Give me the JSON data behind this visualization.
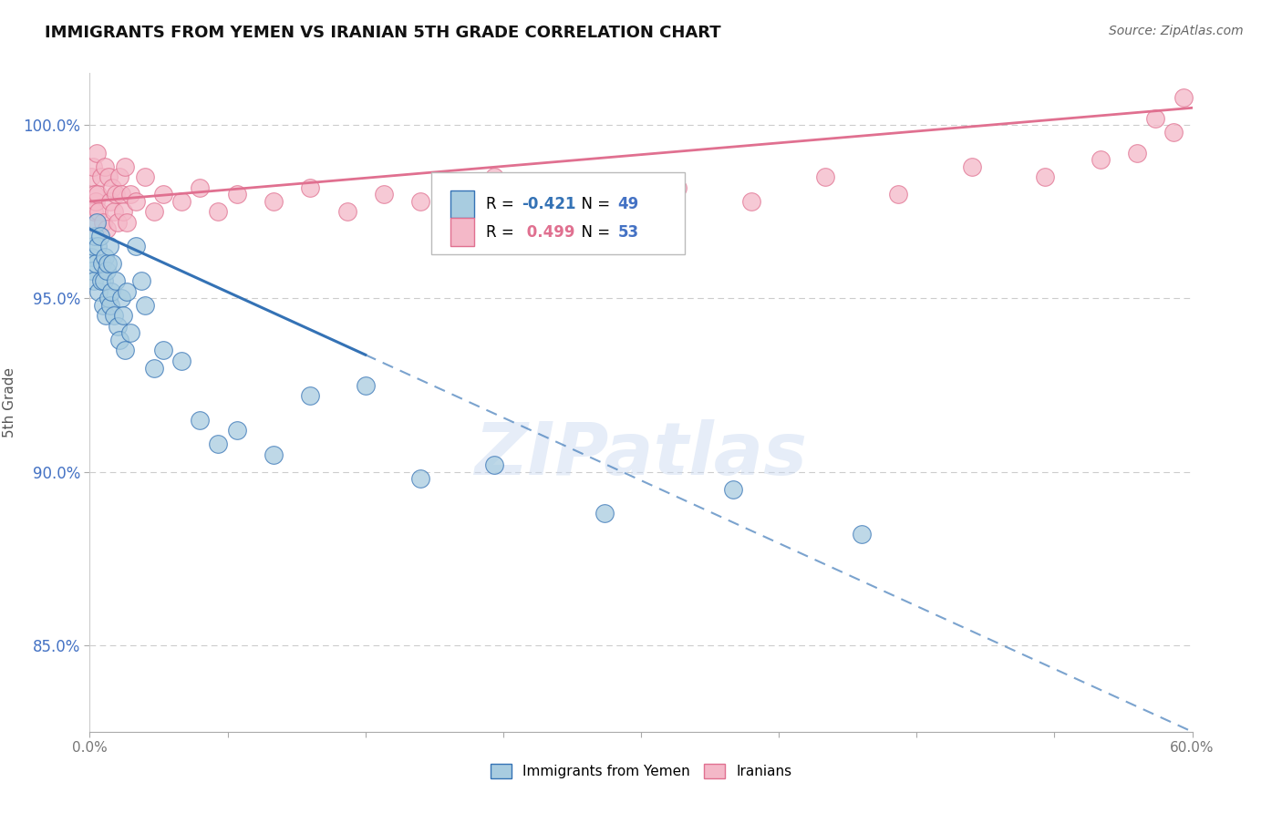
{
  "title": "IMMIGRANTS FROM YEMEN VS IRANIAN 5TH GRADE CORRELATION CHART",
  "source": "Source: ZipAtlas.com",
  "ylabel": "5th Grade",
  "xmin": 0.0,
  "xmax": 60.0,
  "ymin": 82.5,
  "ymax": 101.5,
  "blue_R": -0.421,
  "blue_N": 49,
  "pink_R": 0.499,
  "pink_N": 53,
  "blue_color": "#a8cce0",
  "pink_color": "#f4b8c8",
  "blue_line_color": "#3472b5",
  "pink_line_color": "#e07090",
  "legend_label_blue": "Immigrants from Yemen",
  "legend_label_pink": "Iranians",
  "watermark": "ZIPatlas",
  "axis_color": "#4472c4",
  "ytick_vals": [
    85,
    90,
    95,
    100
  ],
  "ytick_labels": [
    "85.0%",
    "90.0%",
    "95.0%",
    "100.0%"
  ],
  "blue_scatter_x": [
    0.1,
    0.15,
    0.2,
    0.25,
    0.3,
    0.35,
    0.4,
    0.45,
    0.5,
    0.55,
    0.6,
    0.65,
    0.7,
    0.75,
    0.8,
    0.85,
    0.9,
    0.95,
    1.0,
    1.05,
    1.1,
    1.15,
    1.2,
    1.3,
    1.4,
    1.5,
    1.6,
    1.7,
    1.8,
    1.9,
    2.0,
    2.2,
    2.5,
    2.8,
    3.0,
    3.5,
    4.0,
    5.0,
    6.0,
    7.0,
    8.0,
    10.0,
    12.0,
    15.0,
    18.0,
    22.0,
    28.0,
    35.0,
    42.0
  ],
  "blue_scatter_y": [
    96.2,
    95.8,
    96.5,
    95.5,
    96.8,
    96.0,
    97.2,
    96.5,
    95.2,
    96.8,
    95.5,
    96.0,
    94.8,
    95.5,
    96.2,
    94.5,
    95.8,
    96.0,
    95.0,
    96.5,
    94.8,
    95.2,
    96.0,
    94.5,
    95.5,
    94.2,
    93.8,
    95.0,
    94.5,
    93.5,
    95.2,
    94.0,
    96.5,
    95.5,
    94.8,
    93.0,
    93.5,
    93.2,
    91.5,
    90.8,
    91.2,
    90.5,
    92.2,
    92.5,
    89.8,
    90.2,
    88.8,
    89.5,
    88.2
  ],
  "pink_scatter_x": [
    0.1,
    0.15,
    0.2,
    0.25,
    0.3,
    0.35,
    0.4,
    0.45,
    0.5,
    0.6,
    0.7,
    0.8,
    0.9,
    1.0,
    1.1,
    1.2,
    1.3,
    1.4,
    1.5,
    1.6,
    1.7,
    1.8,
    1.9,
    2.0,
    2.2,
    2.5,
    3.0,
    3.5,
    4.0,
    5.0,
    6.0,
    7.0,
    8.0,
    10.0,
    12.0,
    14.0,
    16.0,
    18.0,
    20.0,
    22.0,
    25.0,
    28.0,
    32.0,
    36.0,
    40.0,
    44.0,
    48.0,
    52.0,
    55.0,
    57.0,
    58.0,
    59.0,
    59.5
  ],
  "pink_scatter_y": [
    98.5,
    97.2,
    98.8,
    97.5,
    98.0,
    97.8,
    99.2,
    98.0,
    97.5,
    98.5,
    97.2,
    98.8,
    97.0,
    98.5,
    97.8,
    98.2,
    97.5,
    98.0,
    97.2,
    98.5,
    98.0,
    97.5,
    98.8,
    97.2,
    98.0,
    97.8,
    98.5,
    97.5,
    98.0,
    97.8,
    98.2,
    97.5,
    98.0,
    97.8,
    98.2,
    97.5,
    98.0,
    97.8,
    98.2,
    98.5,
    97.8,
    98.0,
    98.2,
    97.8,
    98.5,
    98.0,
    98.8,
    98.5,
    99.0,
    99.2,
    100.2,
    99.8,
    100.8
  ],
  "blue_line_x0": 0.0,
  "blue_line_y0": 97.0,
  "blue_line_x1": 60.0,
  "blue_line_y1": 82.5,
  "blue_solid_end": 15.0,
  "pink_line_x0": 0.0,
  "pink_line_y0": 97.8,
  "pink_line_x1": 60.0,
  "pink_line_y1": 100.5
}
